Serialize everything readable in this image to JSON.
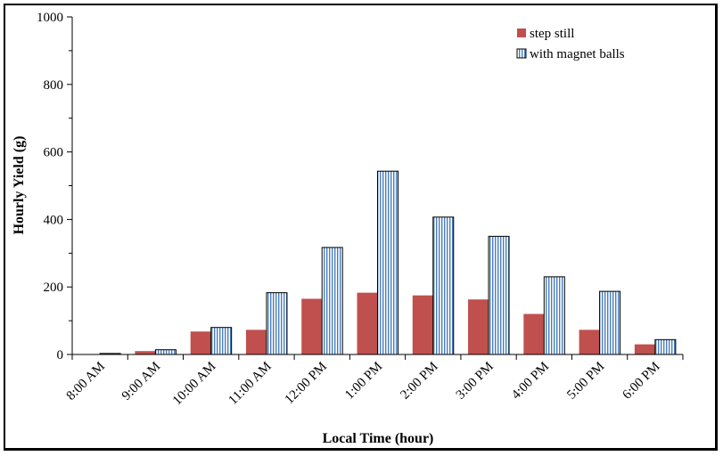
{
  "chart_data": {
    "type": "bar",
    "title": "",
    "xlabel": "Local Time (hour)",
    "ylabel": "Hourly Yield (g)",
    "ylim": [
      0,
      1000
    ],
    "yticks": [
      0,
      200,
      400,
      600,
      800,
      1000
    ],
    "grid": false,
    "legend_position": "top-right",
    "categories": [
      "8:00 AM",
      "9:00 AM",
      "10:00 AM",
      "11:00 AM",
      "12:00 PM",
      "1:00 PM",
      "2:00 PM",
      "3:00 PM",
      "4:00 PM",
      "5:00 PM",
      "6:00 PM"
    ],
    "series": [
      {
        "name": "step still",
        "color": "#c0504d",
        "pattern": "solid",
        "values": [
          0,
          10,
          68,
          73,
          165,
          183,
          175,
          163,
          120,
          73,
          30
        ]
      },
      {
        "name": "with magnet balls",
        "color": "#4a7ebb",
        "pattern": "vertical-stripes",
        "values": [
          3,
          14,
          80,
          183,
          317,
          543,
          407,
          350,
          230,
          187,
          44
        ]
      }
    ]
  }
}
